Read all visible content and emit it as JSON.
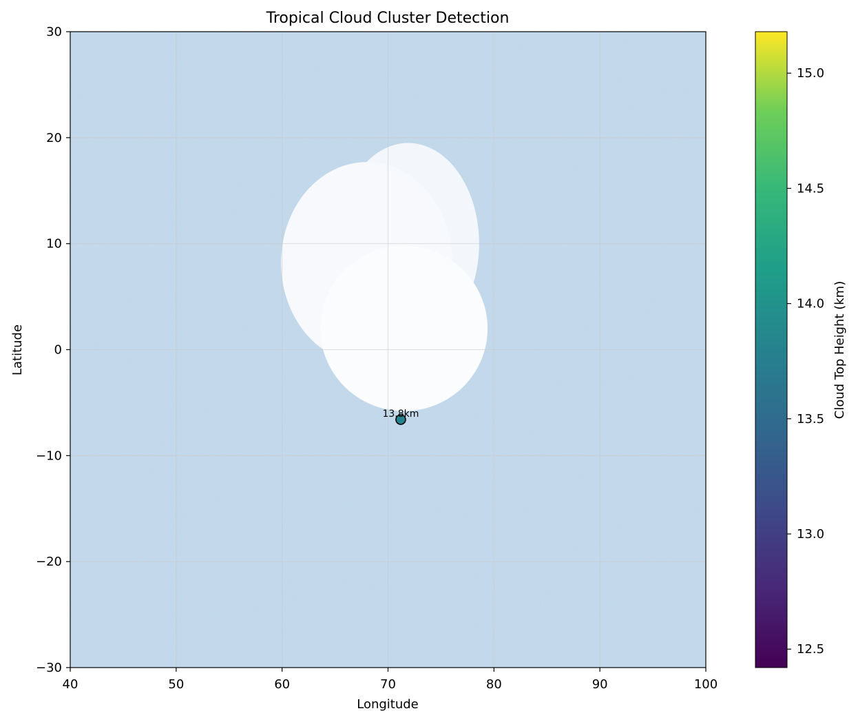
{
  "chart_data": {
    "type": "heatmap",
    "title": "Tropical Cloud Cluster Detection",
    "xlabel": "Longitude",
    "ylabel": "Latitude",
    "xlim": [
      40,
      100
    ],
    "ylim": [
      -30,
      30
    ],
    "xticks": [
      40,
      50,
      60,
      70,
      80,
      90,
      100
    ],
    "yticks": [
      -30,
      -20,
      -10,
      0,
      10,
      20,
      30
    ],
    "grid": true,
    "background_field": {
      "description_color": "#bcd4e8"
    },
    "clouds": [
      {
        "center": [
          71.9,
          10.0
        ],
        "radius_lon": 6.7,
        "radius_lat": 9.5,
        "color": "#f3f7fb"
      },
      {
        "center": [
          68.0,
          8.2
        ],
        "radius_lon": 8.1,
        "radius_lat": 9.5,
        "color": "#f7f9fc"
      },
      {
        "center": [
          71.5,
          2.0
        ],
        "radius_lon": 7.9,
        "radius_lat": 7.8,
        "color": "#fafcfe"
      }
    ],
    "points": [
      {
        "lon": 71.2,
        "lat": -6.6,
        "height_km": 13.8,
        "label": "13.8km"
      }
    ],
    "colorbar": {
      "label": "Cloud Top Height (km)",
      "colormap": "viridis",
      "range": [
        12.42,
        15.18
      ],
      "ticks": [
        12.5,
        13.0,
        13.5,
        14.0,
        14.5,
        15.0
      ]
    }
  }
}
